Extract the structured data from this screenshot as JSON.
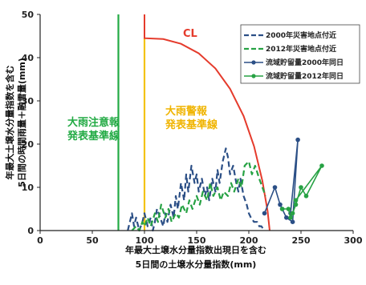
{
  "chart_data": {
    "type": "line",
    "xlabel": [
      "年最大土壌水分量指数出現日を含む",
      "5日間の土壌水分量指数(mm)"
    ],
    "ylabel": [
      "年最大土壌水分量指数を含む",
      "5日間の時間雨量＋融雪量(mm)"
    ],
    "xlim": [
      0,
      300
    ],
    "ylim": [
      0,
      50
    ],
    "xticks": [
      0,
      50,
      100,
      150,
      200,
      250,
      300
    ],
    "yticks": [
      0,
      10,
      20,
      30,
      40,
      50
    ],
    "grid": false,
    "legend_position": "top-right",
    "colors": {
      "heavy_rain_advisory": "#22aa44",
      "heavy_rain_warning": "#f3c316",
      "cl": "#e53b2c",
      "series_2000": "#2b4f86",
      "series_2012": "#27a244"
    },
    "annotations": {
      "cl": "CL",
      "advisory_line1": "大雨注意報",
      "advisory_line2": "発表基準線",
      "warning_line1": "大雨警報",
      "warning_line2": "発表基準線"
    },
    "thresholds": {
      "advisory_x": 75,
      "warning_x": 100,
      "cl_points": [
        [
          100,
          50
        ],
        [
          100,
          44.5
        ],
        [
          118,
          44.3
        ],
        [
          135,
          43.2
        ],
        [
          152,
          41.0
        ],
        [
          168,
          37.5
        ],
        [
          182,
          32.8
        ],
        [
          195,
          26.5
        ],
        [
          205,
          19.5
        ],
        [
          213,
          11.5
        ],
        [
          218,
          4.5
        ],
        [
          220,
          0
        ]
      ]
    },
    "series": [
      {
        "name": "2000年災害地点付近",
        "style": "dashed",
        "color": "#2b4f86",
        "x": [
          84,
          86,
          88,
          90,
          92,
          95,
          98,
          100,
          103,
          106,
          108,
          110,
          112,
          115,
          118,
          120,
          122,
          125,
          128,
          130,
          132,
          135,
          138,
          140,
          142,
          145,
          148,
          150,
          152,
          155,
          158,
          160,
          162,
          165,
          168,
          170,
          172,
          175,
          178,
          180,
          182,
          185,
          188,
          190,
          192,
          195,
          198,
          200,
          202,
          205,
          208,
          210,
          212,
          215
        ],
        "y": [
          0,
          2,
          4,
          1,
          3,
          0,
          2,
          4,
          1,
          3,
          0,
          2,
          5,
          3,
          1,
          4,
          2,
          6,
          3,
          8,
          5,
          11,
          7,
          13,
          9,
          15,
          11,
          13,
          9,
          12,
          8,
          10,
          7,
          12,
          9,
          14,
          11,
          16,
          19,
          17,
          13,
          15,
          11,
          9,
          12,
          8,
          6,
          4,
          3,
          2,
          2,
          1,
          1,
          0
        ]
      },
      {
        "name": "2012年災害地点付近",
        "style": "dashed",
        "color": "#27a244",
        "x": [
          88,
          92,
          95,
          98,
          100,
          103,
          106,
          110,
          113,
          116,
          120,
          123,
          126,
          130,
          133,
          136,
          140,
          143,
          146,
          150,
          153,
          156,
          160,
          163,
          166,
          170,
          173,
          176,
          180,
          183,
          186,
          190,
          193,
          196,
          200,
          203,
          206,
          210,
          213,
          216
        ],
        "y": [
          0,
          1,
          0,
          2,
          1,
          3,
          1,
          4,
          2,
          6,
          3,
          5,
          2,
          4,
          3,
          6,
          4,
          7,
          5,
          8,
          6,
          9,
          7,
          11,
          8,
          10,
          7,
          9,
          8,
          11,
          9,
          12,
          10,
          15,
          16,
          13,
          15,
          12,
          10,
          8
        ]
      },
      {
        "name": "流域貯留量2000年同日",
        "style": "solid",
        "marker": "circle",
        "color": "#2b4f86",
        "x": [
          215,
          225,
          230,
          232,
          236,
          242,
          247,
          240
        ],
        "y": [
          4,
          10,
          6,
          5,
          3,
          2,
          21,
          4
        ]
      },
      {
        "name": "流域貯留量2012年同日",
        "style": "solid",
        "marker": "circle",
        "color": "#27a244",
        "x": [
          232,
          238,
          240,
          242,
          245,
          250,
          255,
          270,
          245
        ],
        "y": [
          5,
          5,
          3,
          4,
          6,
          10,
          8,
          15,
          7
        ]
      }
    ]
  }
}
